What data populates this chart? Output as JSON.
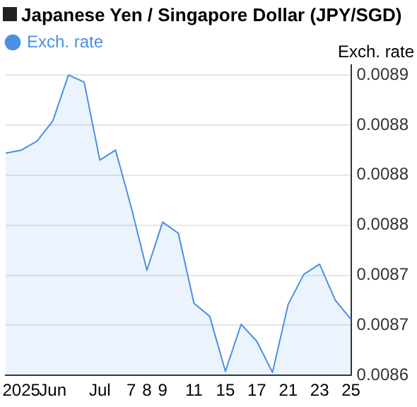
{
  "chart_data": {
    "type": "area",
    "title": "Japanese Yen / Singapore Dollar (JPY/SGD)",
    "ylabel": "Exch. rate",
    "categories": [
      null,
      "2025",
      null,
      "Jun",
      null,
      null,
      "Jul",
      null,
      "7",
      "8",
      "9",
      null,
      "11",
      null,
      "15",
      null,
      "17",
      null,
      "21",
      null,
      "23",
      null,
      "25"
    ],
    "series": [
      {
        "name": "Exch. rate",
        "color": "#4a90e2",
        "values": [
          0.008822,
          0.008825,
          0.008834,
          0.008854,
          0.0089,
          0.008893,
          0.008815,
          0.008825,
          0.008768,
          0.008705,
          0.008753,
          0.008742,
          0.008672,
          0.008659,
          0.008604,
          0.008651,
          0.008634,
          0.008603,
          0.008671,
          0.008701,
          0.008711,
          0.008675,
          0.008656
        ]
      }
    ],
    "ylim": [
      0.0086,
      0.00891
    ],
    "yticks": [
      {
        "value": 0.0086,
        "label": "0.0086"
      },
      {
        "value": 0.00865,
        "label": "0.0087"
      },
      {
        "value": 0.0087,
        "label": "0.0087"
      },
      {
        "value": 0.00875,
        "label": "0.0088"
      },
      {
        "value": 0.0088,
        "label": "0.0088"
      },
      {
        "value": 0.00885,
        "label": "0.0088"
      },
      {
        "value": 0.0089,
        "label": "0.0089"
      }
    ],
    "grid": "y",
    "legend": "top left"
  }
}
